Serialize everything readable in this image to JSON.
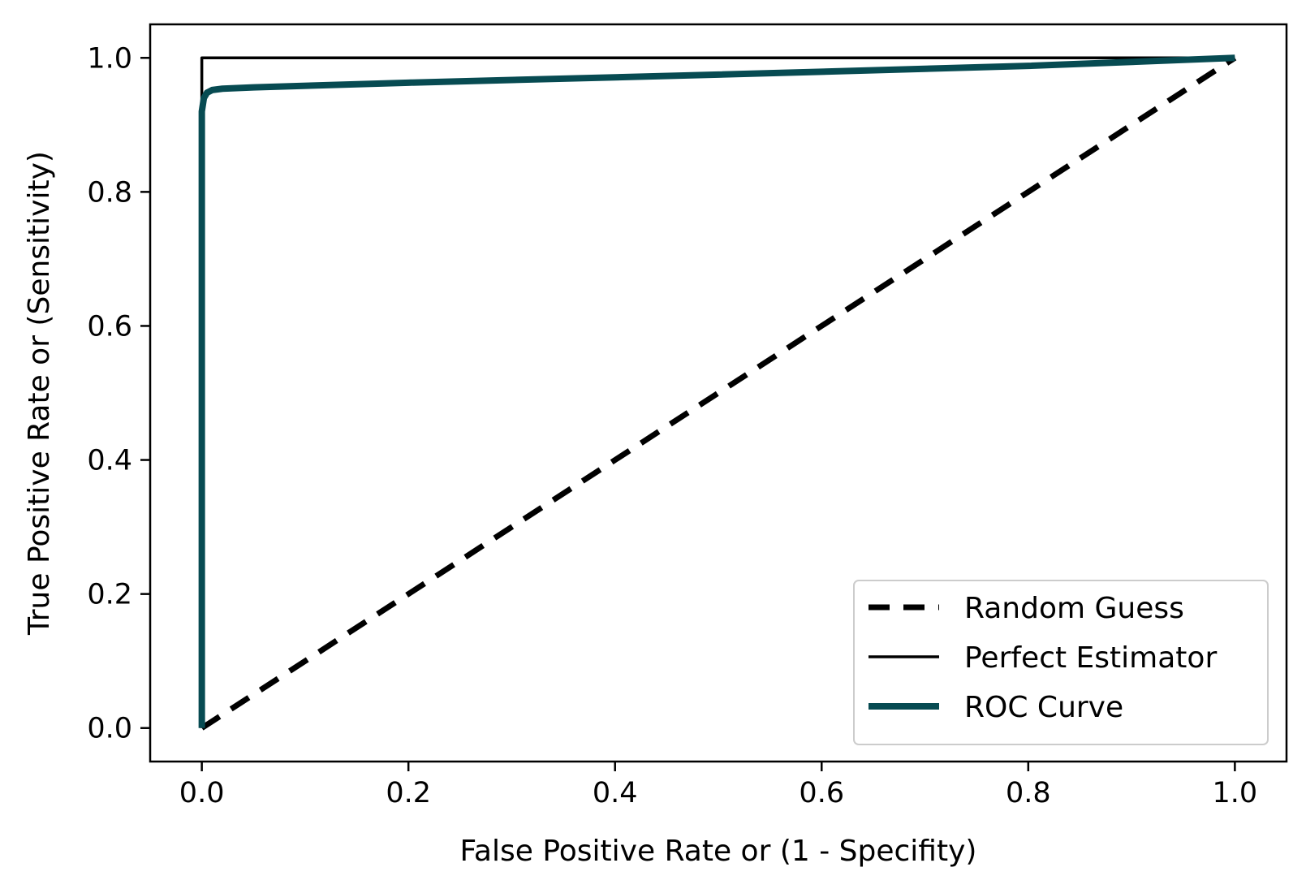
{
  "chart_data": {
    "type": "line",
    "title": "",
    "xlabel": "False Positive Rate or (1 - Specifity)",
    "ylabel": "True Positive Rate or (Sensitivity)",
    "xlim": [
      -0.05,
      1.05
    ],
    "ylim": [
      -0.05,
      1.05
    ],
    "xticks": [
      "0.0",
      "0.2",
      "0.4",
      "0.6",
      "0.8",
      "1.0"
    ],
    "yticks": [
      "0.0",
      "0.2",
      "0.4",
      "0.6",
      "0.8",
      "1.0"
    ],
    "grid": false,
    "legend_position": "lower-right",
    "series": [
      {
        "name": "Random Guess",
        "style": "dashed",
        "color": "#000000",
        "x": [
          0,
          1
        ],
        "y": [
          0,
          1
        ]
      },
      {
        "name": "Perfect Estimator",
        "style": "solid",
        "color": "#000000",
        "x": [
          0,
          0,
          1
        ],
        "y": [
          0,
          1,
          1
        ]
      },
      {
        "name": "ROC Curve",
        "style": "solid",
        "color": "#074b52",
        "x": [
          0,
          0,
          0.002,
          0.005,
          0.01,
          0.02,
          0.05,
          0.2,
          0.5,
          0.8,
          1.0
        ],
        "y": [
          0,
          0.92,
          0.94,
          0.948,
          0.952,
          0.954,
          0.956,
          0.963,
          0.975,
          0.988,
          1.0
        ]
      }
    ]
  }
}
